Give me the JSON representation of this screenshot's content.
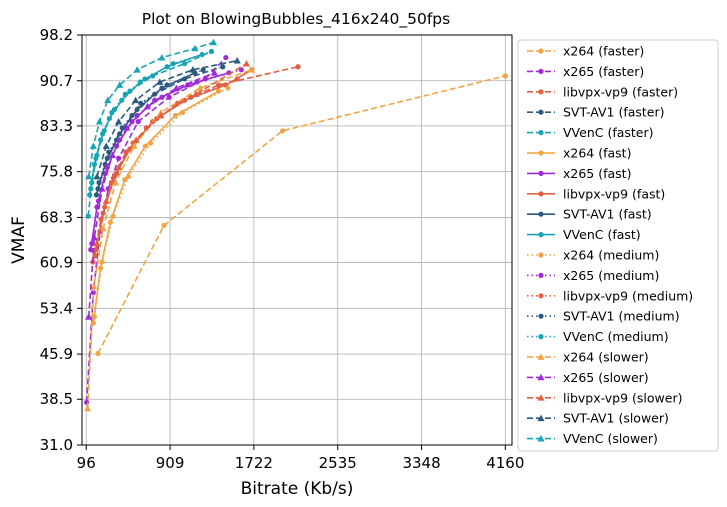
{
  "chart_data": {
    "type": "line",
    "title": "Plot on BlowingBubbles_416x240_50fps",
    "xlabel": "Bitrate (Kb/s)",
    "ylabel": "VMAF",
    "xlim": [
      55,
      4225
    ],
    "ylim": [
      31.0,
      98.2
    ],
    "xticks": [
      96,
      909,
      1722,
      2535,
      3348,
      4160
    ],
    "yticks": [
      31.0,
      38.5,
      45.9,
      53.4,
      60.9,
      68.3,
      75.8,
      83.3,
      90.7,
      98.2
    ],
    "xtick_labels": [
      "96",
      "909",
      "1722",
      "2535",
      "3348",
      "4160"
    ],
    "ytick_labels": [
      "31.0",
      "38.5",
      "45.9",
      "53.4",
      "60.9",
      "68.3",
      "75.8",
      "83.3",
      "90.7",
      "98.2"
    ],
    "grid": true,
    "legend_position": "outside-right",
    "series": [
      {
        "name": "x264 (faster)",
        "color": "#f2a444",
        "dash": "dashed",
        "marker": "circle",
        "x": [
          210,
          850,
          2000,
          4160
        ],
        "y": [
          46.0,
          67.0,
          82.5,
          91.5
        ]
      },
      {
        "name": "x265 (faster)",
        "color": "#a12ad6",
        "dash": "dashed",
        "marker": "circle",
        "x": [
          100,
          165,
          230,
          310,
          410,
          600,
          900,
          1250,
          1450
        ],
        "y": [
          38.0,
          56.0,
          66.0,
          73.0,
          78.0,
          84.0,
          88.0,
          91.0,
          94.5
        ]
      },
      {
        "name": "libvpx-vp9 (faster)",
        "color": "#e06042",
        "dash": "dashed",
        "marker": "circle",
        "x": [
          160,
          240,
          340,
          480,
          680,
          980,
          1380,
          2150
        ],
        "y": [
          61.0,
          68.0,
          74.0,
          79.0,
          83.0,
          87.0,
          90.0,
          93.0
        ]
      },
      {
        "name": "SVT-AV1 (faster)",
        "color": "#2c5a7e",
        "dash": "dashed",
        "marker": "circle",
        "x": [
          195,
          280,
          390,
          540,
          760,
          1050,
          1420
        ],
        "y": [
          72.0,
          77.0,
          81.0,
          85.0,
          88.5,
          91.0,
          93.0
        ]
      },
      {
        "name": "VVenC (faster)",
        "color": "#17a5b5",
        "dash": "dashed",
        "marker": "circle",
        "x": [
          115,
          150,
          200,
          270,
          370,
          520,
          740,
          1050,
          1310
        ],
        "y": [
          68.5,
          74.0,
          78.5,
          82.5,
          86.0,
          89.0,
          91.5,
          93.5,
          95.5
        ]
      },
      {
        "name": "x264 (fast)",
        "color": "#f2a444",
        "dash": "solid",
        "marker": "circle",
        "x": [
          165,
          235,
          330,
          470,
          670,
          960,
          1380
        ],
        "y": [
          51.0,
          60.0,
          67.5,
          74.5,
          80.0,
          85.0,
          89.0
        ]
      },
      {
        "name": "x265 (fast)",
        "color": "#a12ad6",
        "dash": "solid",
        "marker": "circle",
        "x": [
          140,
          200,
          280,
          390,
          540,
          760,
          1080,
          1480
        ],
        "y": [
          63.0,
          70.0,
          75.5,
          80.0,
          84.0,
          87.5,
          90.0,
          92.0
        ]
      },
      {
        "name": "libvpx-vp9 (fast)",
        "color": "#e06042",
        "dash": "solid",
        "marker": "circle",
        "x": [
          180,
          260,
          370,
          520,
          740,
          1050,
          1450,
          1700
        ],
        "y": [
          62.0,
          69.0,
          75.0,
          79.5,
          84.0,
          87.5,
          90.0,
          92.5
        ]
      },
      {
        "name": "SVT-AV1 (fast)",
        "color": "#2c5a7e",
        "dash": "solid",
        "marker": "circle",
        "x": [
          210,
          300,
          420,
          590,
          830,
          1150
        ],
        "y": [
          73.0,
          78.0,
          82.0,
          86.0,
          89.5,
          92.0
        ]
      },
      {
        "name": "VVenC (fast)",
        "color": "#17a5b5",
        "dash": "solid",
        "marker": "circle",
        "x": [
          130,
          175,
          235,
          320,
          440,
          620,
          880,
          1220
        ],
        "y": [
          72.0,
          77.0,
          81.0,
          84.5,
          87.5,
          90.5,
          93.0,
          95.0
        ]
      },
      {
        "name": "x264 (medium)",
        "color": "#f2a444",
        "dash": "dotted",
        "marker": "circle",
        "x": [
          175,
          250,
          355,
          505,
          720,
          1030,
          1470
        ],
        "y": [
          52.0,
          61.0,
          68.5,
          75.0,
          80.5,
          85.5,
          89.5
        ]
      },
      {
        "name": "x265 (medium)",
        "color": "#a12ad6",
        "dash": "dotted",
        "marker": "circle",
        "x": [
          150,
          215,
          300,
          420,
          590,
          830,
          1170,
          1600
        ],
        "y": [
          64.0,
          71.0,
          76.5,
          81.0,
          85.0,
          88.0,
          90.5,
          92.5
        ]
      },
      {
        "name": "libvpx-vp9 (medium)",
        "color": "#e06042",
        "dash": "dotted",
        "marker": "circle",
        "x": [
          190,
          275,
          390,
          550,
          780,
          1110,
          1560
        ],
        "y": [
          63.0,
          70.0,
          75.5,
          80.5,
          84.5,
          88.0,
          91.0
        ]
      },
      {
        "name": "SVT-AV1 (medium)",
        "color": "#2c5a7e",
        "dash": "dotted",
        "marker": "circle",
        "x": [
          220,
          315,
          445,
          625,
          880,
          1230
        ],
        "y": [
          74.0,
          79.0,
          83.0,
          87.0,
          90.0,
          92.5
        ]
      },
      {
        "name": "VVenC (medium)",
        "color": "#17a5b5",
        "dash": "dotted",
        "marker": "circle",
        "x": [
          140,
          190,
          255,
          345,
          475,
          665,
          940,
          1310
        ],
        "y": [
          73.0,
          78.0,
          82.0,
          85.5,
          88.5,
          91.0,
          93.5,
          95.5
        ]
      },
      {
        "name": "x264 (slower)",
        "color": "#f2a444",
        "dash": "dashed",
        "marker": "triangle",
        "x": [
          110,
          170,
          260,
          380,
          560,
          820,
          1200,
          1700
        ],
        "y": [
          37.0,
          57.0,
          66.5,
          74.0,
          80.0,
          85.5,
          89.5,
          92.5
        ]
      },
      {
        "name": "x265 (slower)",
        "color": "#a12ad6",
        "dash": "dashed",
        "marker": "triangle",
        "x": [
          120,
          175,
          250,
          350,
          490,
          690,
          970,
          1340
        ],
        "y": [
          52.0,
          65.0,
          73.0,
          78.5,
          83.0,
          86.5,
          89.5,
          92.0
        ]
      },
      {
        "name": "libvpx-vp9 (slower)",
        "color": "#e06042",
        "dash": "dashed",
        "marker": "triangle",
        "x": [
          200,
          290,
          410,
          580,
          820,
          1160,
          1650
        ],
        "y": [
          64.0,
          71.0,
          76.5,
          81.0,
          85.0,
          88.5,
          93.5
        ]
      },
      {
        "name": "SVT-AV1 (slower)",
        "color": "#2c5a7e",
        "dash": "dashed",
        "marker": "triangle",
        "x": [
          200,
          290,
          410,
          575,
          810,
          1130,
          1560
        ],
        "y": [
          75.0,
          80.0,
          84.0,
          87.5,
          90.5,
          92.5,
          94.0
        ]
      },
      {
        "name": "VVenC (slower)",
        "color": "#17a5b5",
        "dash": "dashed",
        "marker": "triangle",
        "x": [
          120,
          165,
          225,
          305,
          420,
          590,
          830,
          1150,
          1330
        ],
        "y": [
          75.0,
          80.0,
          84.0,
          87.5,
          90.0,
          92.5,
          94.5,
          96.0,
          97.0
        ]
      }
    ]
  }
}
